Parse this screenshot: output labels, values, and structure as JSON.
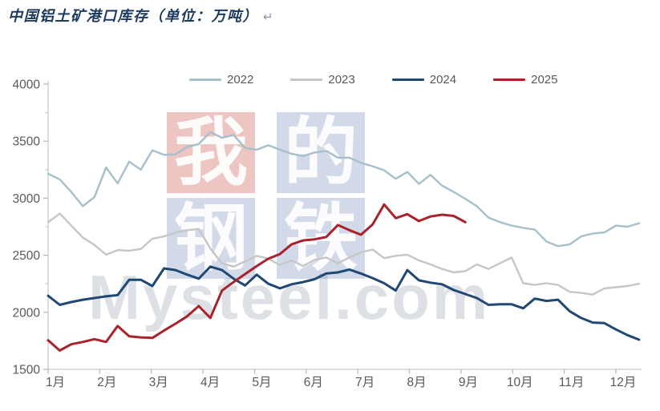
{
  "title": {
    "text": "中国铝土矿港口库存（单位：万吨）",
    "return_mark": "↵"
  },
  "watermark": {
    "logo_text": "Mysteel.com",
    "squares": [
      {
        "char": "我",
        "bg": "rgba(198,78,72,0.32)"
      },
      {
        "char": "的",
        "bg": "rgba(92,122,175,0.28)"
      },
      {
        "char": "钢",
        "bg": "rgba(92,122,175,0.28)"
      },
      {
        "char": "铁",
        "bg": "rgba(92,122,175,0.28)"
      }
    ]
  },
  "chart_data": {
    "type": "line",
    "title": "中国铝土矿港口库存",
    "unit": "万吨",
    "frequency": "weekly",
    "legend_position": "top",
    "grid": false,
    "y_axis": {
      "min": 1500,
      "max": 4000,
      "major_step": 500,
      "minor_step": 250,
      "tick_labels": [
        "4000",
        "3500",
        "3000",
        "2500",
        "2000",
        "1500"
      ]
    },
    "x_axis": {
      "tick_labels": [
        "1月",
        "2月",
        "3月",
        "4月",
        "5月",
        "6月",
        "7月",
        "8月",
        "9月",
        "10月",
        "11月",
        "12月"
      ]
    },
    "series": [
      {
        "name": "2022",
        "color": "#a7bfca",
        "width": 2.4,
        "values": [
          3215,
          3165,
          3055,
          2930,
          3010,
          3270,
          3130,
          3320,
          3250,
          3420,
          3380,
          3385,
          3450,
          3475,
          3580,
          3530,
          3555,
          3440,
          3425,
          3465,
          3425,
          3390,
          3370,
          3400,
          3415,
          3355,
          3355,
          3310,
          3280,
          3245,
          3170,
          3230,
          3125,
          3205,
          3110,
          3055,
          2995,
          2930,
          2830,
          2790,
          2760,
          2740,
          2725,
          2620,
          2580,
          2595,
          2665,
          2690,
          2700,
          2760,
          2750,
          2780
        ]
      },
      {
        "name": "2023",
        "color": "#c6c6c6",
        "width": 2.4,
        "values": [
          2790,
          2865,
          2760,
          2655,
          2590,
          2505,
          2545,
          2540,
          2555,
          2645,
          2665,
          2700,
          2720,
          2730,
          2560,
          2430,
          2400,
          2445,
          2495,
          2470,
          2415,
          2455,
          2405,
          2460,
          2480,
          2430,
          2480,
          2525,
          2550,
          2475,
          2495,
          2505,
          2455,
          2420,
          2380,
          2350,
          2360,
          2420,
          2380,
          2430,
          2480,
          2255,
          2240,
          2255,
          2240,
          2180,
          2170,
          2155,
          2210,
          2220,
          2230,
          2250
        ]
      },
      {
        "name": "2024",
        "color": "#1f4873",
        "width": 3,
        "values": [
          2145,
          2065,
          2090,
          2110,
          2125,
          2140,
          2150,
          2285,
          2285,
          2230,
          2385,
          2370,
          2330,
          2295,
          2400,
          2370,
          2295,
          2235,
          2330,
          2250,
          2210,
          2245,
          2265,
          2290,
          2340,
          2350,
          2375,
          2340,
          2300,
          2255,
          2190,
          2370,
          2280,
          2260,
          2245,
          2195,
          2160,
          2125,
          2065,
          2070,
          2070,
          2035,
          2120,
          2100,
          2110,
          2010,
          1950,
          1910,
          1905,
          1850,
          1800,
          1760
        ]
      },
      {
        "name": "2025",
        "color": "#a8232b",
        "width": 3,
        "values": [
          1755,
          1665,
          1720,
          1740,
          1765,
          1740,
          1880,
          1790,
          1780,
          1775,
          1840,
          1900,
          1965,
          2055,
          1950,
          2190,
          2265,
          2335,
          2405,
          2470,
          2510,
          2595,
          2630,
          2640,
          2660,
          2765,
          2720,
          2680,
          2770,
          2945,
          2825,
          2860,
          2800,
          2840,
          2855,
          2845,
          2790
        ]
      }
    ]
  }
}
